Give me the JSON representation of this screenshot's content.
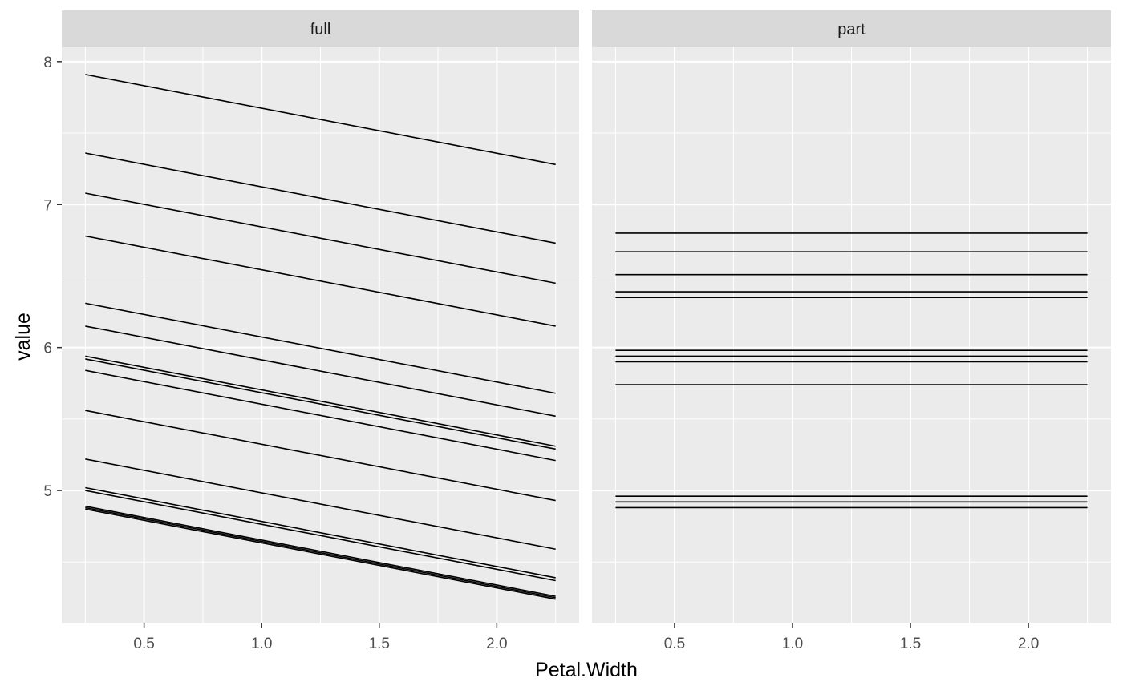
{
  "chart_data": {
    "type": "line",
    "title": "",
    "xlabel": "Petal.Width",
    "ylabel": "value",
    "xlim": [
      0.15,
      2.35
    ],
    "ylim": [
      4.07,
      8.1
    ],
    "x_ticks": [
      0.5,
      1.0,
      1.5,
      2.0
    ],
    "x_tick_labels": [
      "0.5",
      "1.0",
      "1.5",
      "2.0"
    ],
    "y_ticks": [
      5,
      6,
      7,
      8
    ],
    "y_tick_labels": [
      "5",
      "6",
      "7",
      "8"
    ],
    "grid": true,
    "legend": "none",
    "x_range": [
      0.25,
      2.25
    ],
    "panels": [
      {
        "label": "full",
        "series": [
          {
            "values": [
              7.91,
              7.28
            ]
          },
          {
            "values": [
              7.36,
              6.73
            ]
          },
          {
            "values": [
              7.08,
              6.45
            ]
          },
          {
            "values": [
              6.78,
              6.15
            ]
          },
          {
            "values": [
              6.31,
              5.68
            ]
          },
          {
            "values": [
              6.15,
              5.52
            ]
          },
          {
            "values": [
              5.94,
              5.31
            ]
          },
          {
            "values": [
              5.92,
              5.29
            ]
          },
          {
            "values": [
              5.84,
              5.21
            ]
          },
          {
            "values": [
              5.56,
              4.93
            ]
          },
          {
            "values": [
              5.22,
              4.59
            ]
          },
          {
            "values": [
              5.02,
              4.39
            ]
          },
          {
            "values": [
              5.0,
              4.37
            ]
          },
          {
            "values": [
              4.89,
              4.26
            ]
          },
          {
            "values": [
              4.88,
              4.25
            ]
          },
          {
            "values": [
              4.87,
              4.24
            ]
          }
        ]
      },
      {
        "label": "part",
        "series": [
          {
            "values": [
              6.8,
              6.8
            ]
          },
          {
            "values": [
              6.67,
              6.67
            ]
          },
          {
            "values": [
              6.51,
              6.51
            ]
          },
          {
            "values": [
              6.39,
              6.39
            ]
          },
          {
            "values": [
              6.35,
              6.35
            ]
          },
          {
            "values": [
              5.98,
              5.98
            ]
          },
          {
            "values": [
              5.94,
              5.94
            ]
          },
          {
            "values": [
              5.9,
              5.9
            ]
          },
          {
            "values": [
              5.74,
              5.74
            ]
          },
          {
            "values": [
              4.96,
              4.96
            ]
          },
          {
            "values": [
              4.92,
              4.92
            ]
          },
          {
            "values": [
              4.88,
              4.88
            ]
          }
        ]
      }
    ]
  }
}
